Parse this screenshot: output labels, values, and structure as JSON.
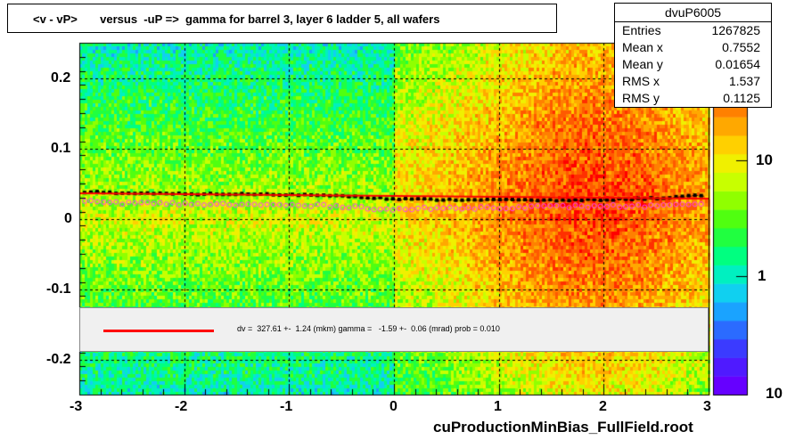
{
  "title": "<v - vP>       versus  -uP =>  gamma for barrel 3, layer 6 ladder 5, all wafers",
  "stats": {
    "name": "dvuP6005",
    "rows": [
      {
        "label": "Entries",
        "value": "1267825"
      },
      {
        "label": "Mean x",
        "value": "0.7552"
      },
      {
        "label": "Mean y",
        "value": "0.01654"
      },
      {
        "label": "RMS x",
        "value": "1.537"
      },
      {
        "label": "RMS y",
        "value": "0.1125"
      }
    ]
  },
  "fit_text": "dv =  327.61 +-  1.24 (mkm) gamma =   -1.59 +-  0.06 (mrad) prob = 0.010",
  "footer": "cuProductionMinBias_FullField.root",
  "chart_data": {
    "type": "heatmap",
    "xlim": [
      -3,
      3
    ],
    "ylim": [
      -0.25,
      0.25
    ],
    "x_ticks": [
      "-3",
      "-2",
      "-1",
      "0",
      "1",
      "2",
      "3"
    ],
    "y_ticks": [
      "0.2",
      "0.1",
      "0",
      "-0.1",
      "-0.2"
    ],
    "y_tick_values": [
      0.2,
      0.1,
      0,
      -0.1,
      -0.2
    ],
    "color_scale": "log",
    "color_ticks": [
      "10",
      "1",
      "10"
    ],
    "grid": true,
    "profile_black": {
      "x": [
        -2.9,
        -2.5,
        -2.0,
        -1.5,
        -1.0,
        -0.5,
        0.0,
        0.5,
        1.0,
        1.5,
        2.0,
        2.5,
        2.9
      ],
      "y": [
        0.038,
        0.036,
        0.035,
        0.035,
        0.034,
        0.033,
        0.028,
        0.027,
        0.027,
        0.026,
        0.027,
        0.029,
        0.033
      ]
    },
    "profile_magenta": {
      "x": [
        -2.9,
        -2.5,
        -2.0,
        -1.5,
        -1.0,
        -0.5,
        0.0,
        0.5,
        1.0,
        1.5,
        2.0,
        2.5,
        2.9
      ],
      "y": [
        0.024,
        0.022,
        0.021,
        0.02,
        0.019,
        0.018,
        0.013,
        0.015,
        0.016,
        0.017,
        0.018,
        0.018,
        0.019
      ]
    },
    "fit_line": {
      "x": [
        -3,
        3
      ],
      "y": [
        0.0361,
        0.0286
      ]
    }
  }
}
